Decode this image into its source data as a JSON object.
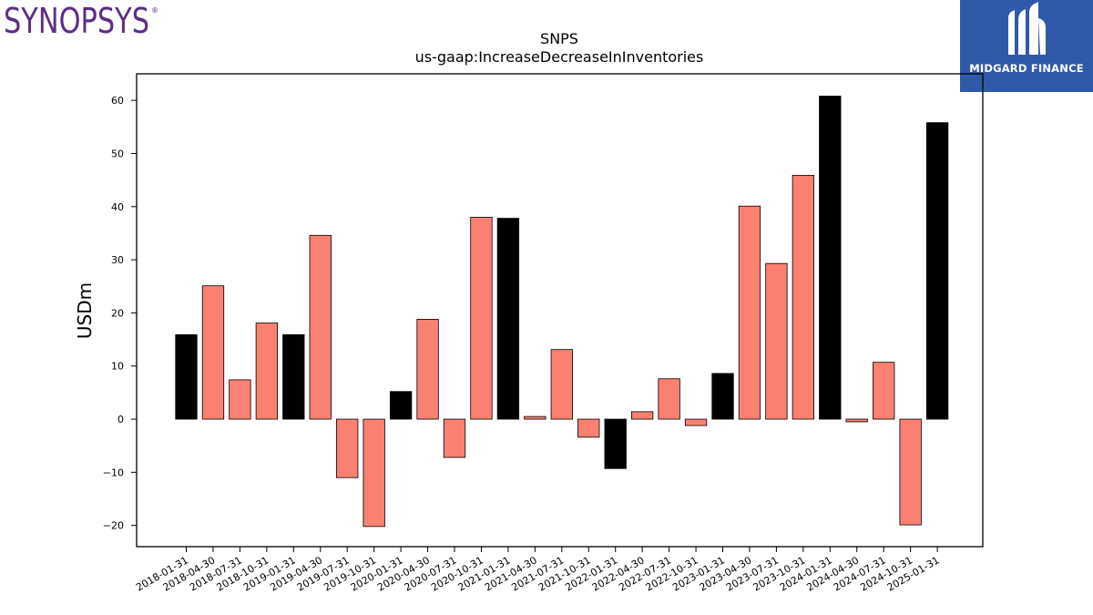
{
  "brand_left": {
    "name": "SYNOPSYS",
    "color": "#5b2f86"
  },
  "brand_right": {
    "name": "MIDGARD FINANCE",
    "bg": "#2f5aa8"
  },
  "chart_data": {
    "type": "bar",
    "title": "SNPS",
    "subtitle": "us-gaap:IncreaseDecreaseInInventories",
    "xlabel": "",
    "ylabel": "USDm",
    "ylim": [
      -24,
      65
    ],
    "yticks": [
      -20,
      -10,
      0,
      10,
      20,
      30,
      40,
      50,
      60
    ],
    "grid": false,
    "colors": {
      "annual": "#000000",
      "quarterly": "#fa8072"
    },
    "categories": [
      "2018-01-31",
      "2018-04-30",
      "2018-07-31",
      "2018-10-31",
      "2019-01-31",
      "2019-04-30",
      "2019-07-31",
      "2019-10-31",
      "2020-01-31",
      "2020-04-30",
      "2020-07-31",
      "2020-10-31",
      "2021-01-31",
      "2021-04-30",
      "2021-07-31",
      "2021-10-31",
      "2022-01-31",
      "2022-04-30",
      "2022-07-31",
      "2022-10-31",
      "2023-01-31",
      "2023-04-30",
      "2023-07-31",
      "2023-10-31",
      "2024-01-31",
      "2024-04-30",
      "2024-07-31",
      "2024-10-31",
      "2025-01-31"
    ],
    "values": [
      15.9,
      25.1,
      7.4,
      18.1,
      15.9,
      34.6,
      -11.0,
      -20.2,
      5.2,
      18.8,
      -7.2,
      38.0,
      37.8,
      0.5,
      13.1,
      -3.4,
      -9.3,
      1.4,
      7.6,
      -1.2,
      8.6,
      40.1,
      29.3,
      45.9,
      60.8,
      -0.5,
      10.7,
      -19.9,
      55.8
    ],
    "highlight": [
      true,
      false,
      false,
      false,
      true,
      false,
      false,
      false,
      true,
      false,
      false,
      false,
      true,
      false,
      false,
      false,
      true,
      false,
      false,
      false,
      true,
      false,
      false,
      false,
      true,
      false,
      false,
      false,
      true
    ]
  }
}
